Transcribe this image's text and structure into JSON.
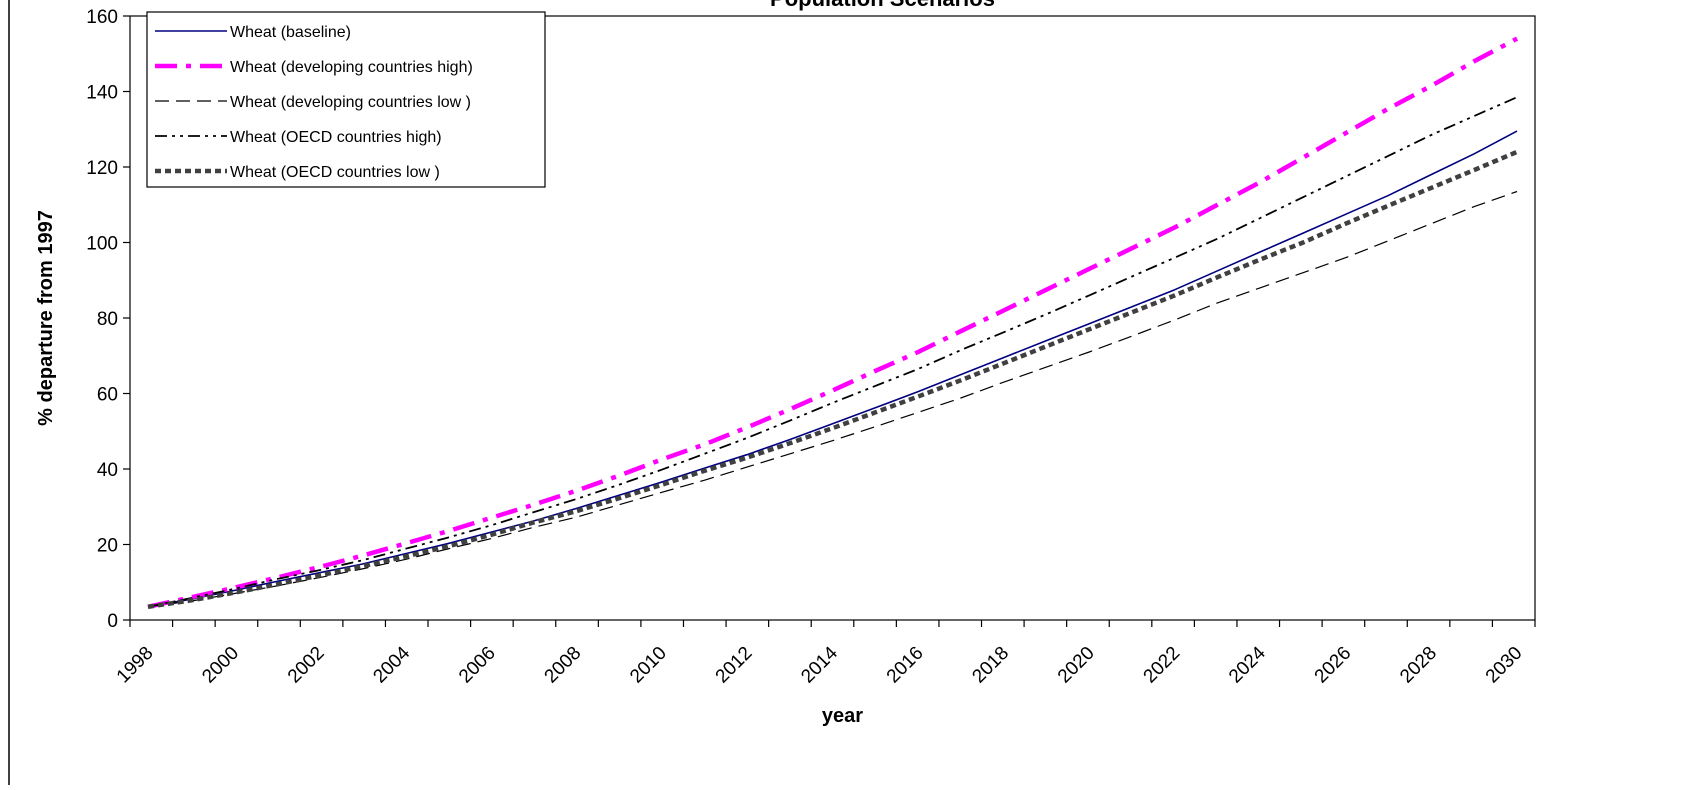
{
  "chart_data": {
    "type": "line",
    "title": "Population Scenarios",
    "xlabel": "year",
    "ylabel": "% departure from 1997",
    "ylim": [
      0,
      160
    ],
    "yticks": [
      0,
      20,
      40,
      60,
      80,
      100,
      120,
      140,
      160
    ],
    "xlim": [
      1998,
      2030
    ],
    "xticks": [
      "1998",
      "2000",
      "2002",
      "2004",
      "2006",
      "2008",
      "2010",
      "2012",
      "2014",
      "2016",
      "2018",
      "2020",
      "2022",
      "2024",
      "2026",
      "2028",
      "2030"
    ],
    "grid": false,
    "legend_position": "top-left",
    "x": [
      1998,
      1999,
      2000,
      2001,
      2002,
      2003,
      2004,
      2005,
      2006,
      2007,
      2008,
      2009,
      2010,
      2011,
      2012,
      2013,
      2014,
      2015,
      2016,
      2017,
      2018,
      2019,
      2020,
      2021,
      2022,
      2023,
      2024,
      2025,
      2026,
      2027,
      2028,
      2029,
      2030
    ],
    "series": [
      {
        "name": "Wheat (baseline)",
        "color": "#000080",
        "style": "solid",
        "values": [
          3.5,
          5.5,
          7.8,
          10.2,
          12.5,
          14.8,
          17.5,
          20.2,
          23.2,
          26.2,
          29.5,
          33.0,
          36.5,
          40.2,
          43.8,
          47.8,
          52.0,
          56.2,
          60.5,
          65.0,
          69.5,
          74.0,
          78.5,
          83.0,
          87.5,
          92.5,
          97.5,
          102.5,
          107.5,
          112.5,
          118.0,
          123.5,
          129.5
        ]
      },
      {
        "name": "Wheat (developing countries high)",
        "color": "#ff00ff",
        "style": "dashdot-thick",
        "values": [
          3.5,
          6.0,
          8.5,
          11.2,
          14.0,
          17.0,
          20.2,
          23.5,
          27.0,
          30.5,
          34.2,
          38.2,
          42.5,
          46.5,
          51.0,
          55.8,
          60.8,
          66.0,
          71.0,
          76.5,
          82.0,
          87.5,
          93.0,
          98.5,
          104.0,
          110.0,
          116.0,
          122.5,
          129.0,
          135.5,
          141.5,
          148.0,
          154.0
        ]
      },
      {
        "name": "Wheat (developing countries low )",
        "color": "#000000",
        "style": "longdash",
        "values": [
          3.5,
          5.0,
          7.0,
          9.0,
          11.2,
          13.5,
          16.0,
          18.8,
          21.5,
          24.5,
          27.2,
          30.5,
          33.8,
          37.0,
          40.5,
          44.0,
          47.5,
          51.2,
          55.0,
          58.8,
          63.0,
          67.0,
          71.0,
          75.2,
          79.5,
          84.0,
          88.0,
          92.0,
          96.0,
          100.5,
          105.0,
          109.5,
          113.5
        ]
      },
      {
        "name": "Wheat (OECD countries high)",
        "color": "#000000",
        "style": "dashdotdot",
        "values": [
          3.5,
          5.8,
          8.2,
          10.8,
          13.2,
          15.8,
          18.8,
          21.8,
          25.0,
          28.5,
          32.0,
          35.8,
          39.8,
          44.0,
          48.2,
          52.8,
          57.5,
          62.0,
          66.5,
          71.5,
          76.2,
          81.0,
          86.0,
          91.0,
          96.0,
          101.0,
          106.5,
          112.0,
          117.5,
          123.0,
          128.5,
          133.5,
          138.5
        ]
      },
      {
        "name": "Wheat (OECD countries low )",
        "color": "#404040",
        "style": "dotted-thick",
        "values": [
          3.5,
          5.2,
          7.2,
          9.4,
          11.8,
          14.2,
          16.8,
          19.5,
          22.5,
          25.8,
          28.8,
          32.2,
          35.8,
          39.5,
          43.0,
          46.8,
          50.8,
          55.0,
          59.2,
          63.5,
          68.0,
          72.5,
          77.0,
          81.5,
          86.0,
          90.8,
          95.5,
          100.0,
          105.0,
          109.8,
          114.5,
          119.2,
          124.0
        ]
      }
    ]
  }
}
